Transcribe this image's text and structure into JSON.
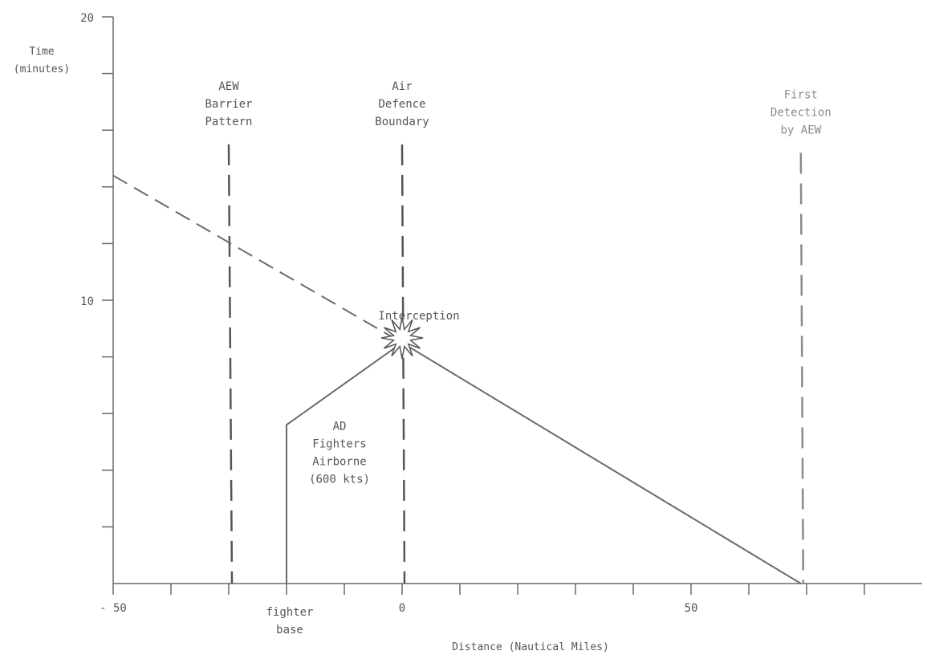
{
  "chart_data": {
    "type": "line",
    "title": "",
    "xlabel": "Distance (Nautical Miles)",
    "ylabel": "Time (minutes)",
    "ylabel_lines": [
      "Time",
      "(minutes)"
    ],
    "xlim": [
      -50,
      90
    ],
    "ylim": [
      0,
      20
    ],
    "x_ticks": [
      -50,
      -40,
      -30,
      -20,
      -10,
      0,
      10,
      20,
      30,
      40,
      50,
      60,
      70,
      80
    ],
    "x_tick_labels": [
      {
        "x": -50,
        "label": "- 50"
      },
      {
        "x": 0,
        "label": "0"
      },
      {
        "x": 50,
        "label": "50"
      }
    ],
    "y_ticks": [
      0,
      2,
      4,
      6,
      8,
      10,
      12,
      14,
      16,
      18,
      20
    ],
    "y_tick_labels": [
      {
        "y": 10,
        "label": "10"
      },
      {
        "y": 20,
        "label": "20"
      }
    ],
    "series": [
      {
        "style": "solid",
        "points": [
          [
            -20,
            0
          ],
          [
            -20,
            5.6
          ],
          [
            0,
            8.5
          ]
        ]
      },
      {
        "style": "solid",
        "points": [
          [
            0,
            8.5
          ],
          [
            69,
            0
          ]
        ]
      },
      {
        "style": "dashed",
        "points": [
          [
            -50,
            14.4
          ],
          [
            0,
            8.5
          ]
        ]
      }
    ],
    "reference_lines": [
      {
        "x": -30,
        "y_top": 15.5,
        "style": "dashed",
        "lines": [
          "AEW",
          "Barrier",
          "Pattern"
        ]
      },
      {
        "x": 0,
        "y_top": 15.5,
        "style": "dashed",
        "lines": [
          "Air",
          "Defence",
          "Boundary"
        ]
      },
      {
        "x": 69,
        "y_top": 15.2,
        "style": "dashed-light",
        "lines": [
          "First",
          "Detection",
          "by AEW"
        ]
      }
    ],
    "annotations": [
      {
        "id": "interception",
        "x": 0,
        "y": 8.5,
        "text": "Interception"
      },
      {
        "id": "fighters",
        "x": -20,
        "y": 5.6,
        "lines": [
          "AD",
          "Fighters",
          "Airborne",
          "(600 kts)"
        ]
      },
      {
        "id": "fighter-base",
        "x": -20,
        "y": 0,
        "lines": [
          "fighter",
          "base"
        ]
      }
    ]
  }
}
